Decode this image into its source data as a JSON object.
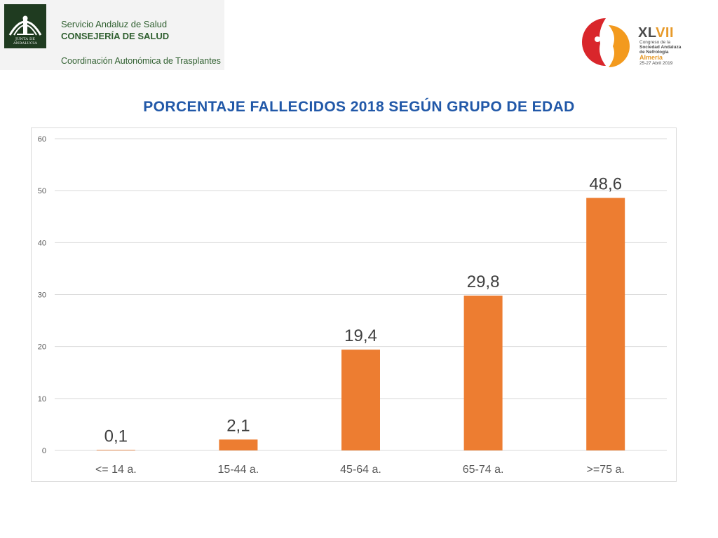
{
  "header": {
    "emblem_caption": "JUNTA DE ANDALUCIA",
    "org_line1": "Servicio Andaluz de Salud",
    "org_line2": "CONSEJERÍA DE SALUD",
    "org_line3": "Coordinación Autonómica de Trasplantes"
  },
  "congress": {
    "roman_prefix": "XL",
    "roman_suffix": "VII",
    "line1": "Congreso de la",
    "line2": "Sociedad Andaluza",
    "line3": "de Nefrología",
    "city": "Almería",
    "dates": "25-27 Abril 2019",
    "colors": {
      "red": "#d9262b",
      "orange": "#f39a1e"
    }
  },
  "chart_data": {
    "type": "bar",
    "title": "PORCENTAJE FALLECIDOS 2018 SEGÚN GRUPO DE EDAD",
    "categories": [
      "<= 14 a.",
      "15-44 a.",
      "45-64 a.",
      "65-74 a.",
      ">=75 a."
    ],
    "values": [
      0.1,
      2.1,
      19.4,
      29.8,
      48.6
    ],
    "data_labels": [
      "0,1",
      "2,1",
      "19,4",
      "29,8",
      "48,6"
    ],
    "y_ticks": [
      0,
      10,
      20,
      30,
      40,
      50,
      60
    ],
    "ylim": [
      0,
      60
    ],
    "xlabel": "",
    "ylabel": "",
    "grid": true,
    "legend": "none",
    "bar_color": "#ed7d31",
    "title_color": "#2158a8"
  }
}
